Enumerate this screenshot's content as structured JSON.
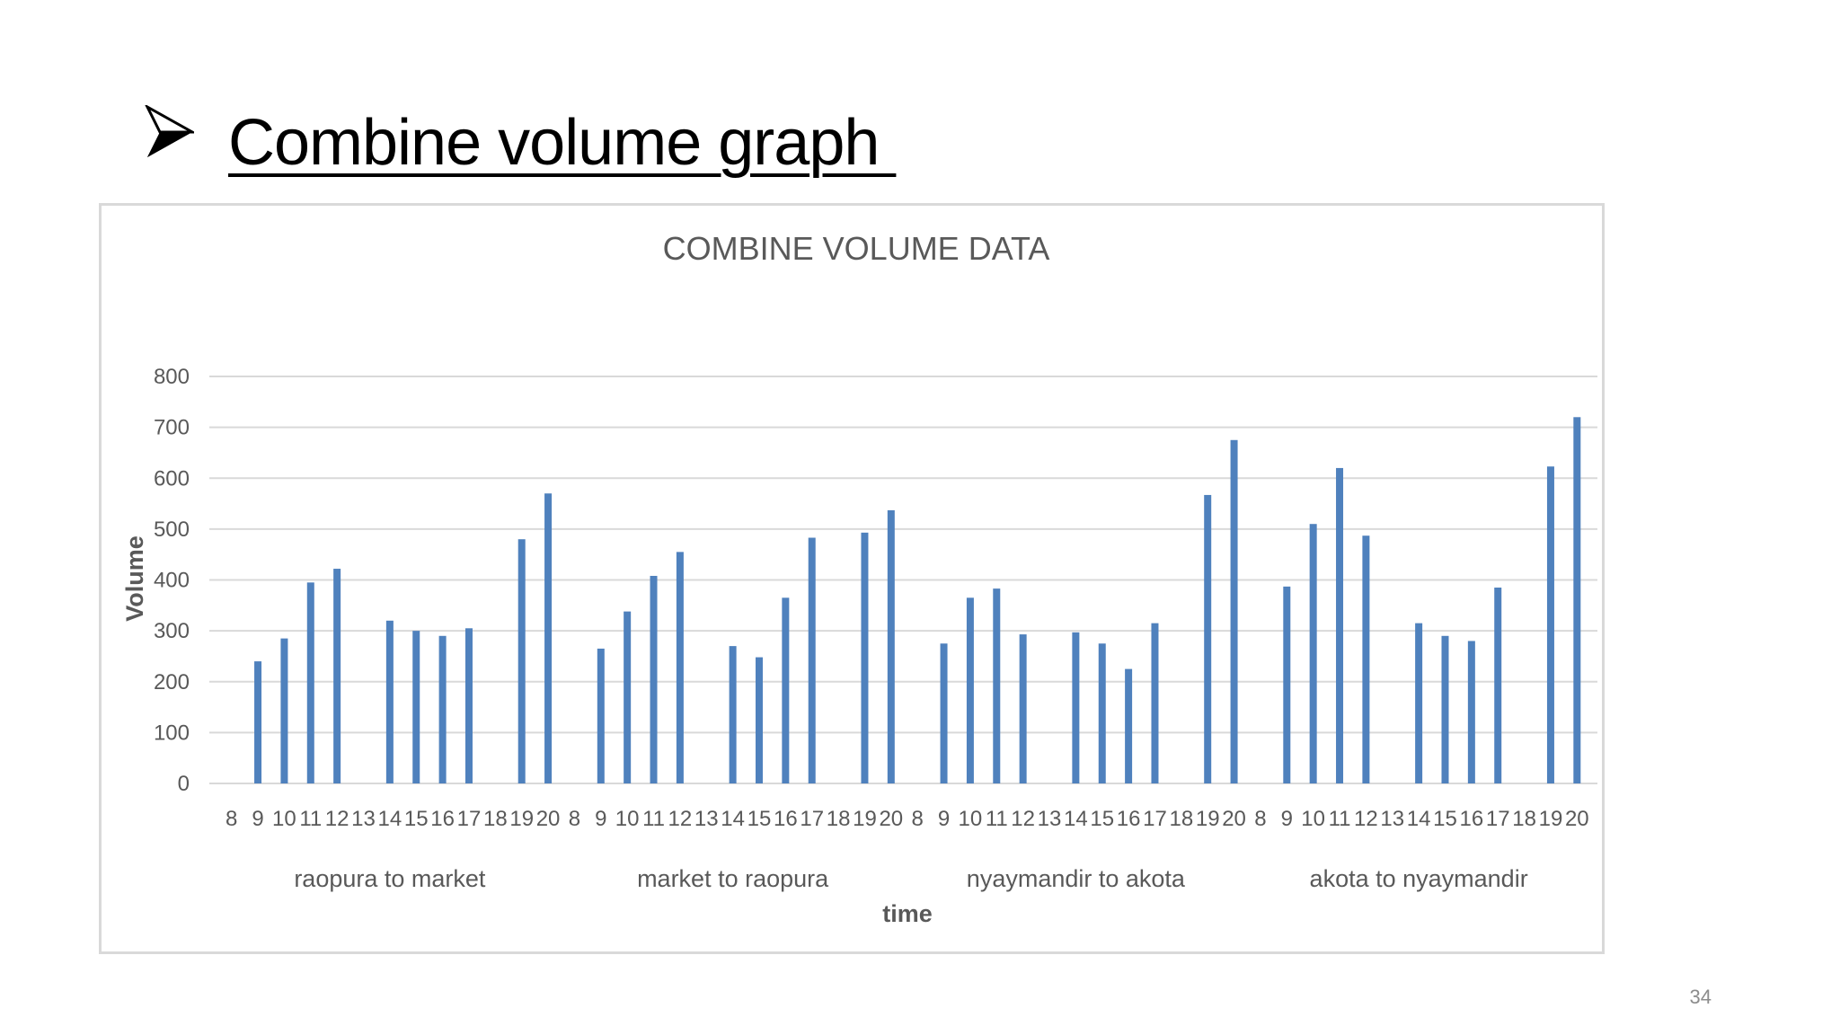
{
  "slide": {
    "title": "Combine volume graph ",
    "page_number": "34"
  },
  "colors": {
    "bar": "#4f81bd",
    "grid": "#d9d9d9",
    "text": "#595959"
  },
  "icons": {
    "bullet": "arrowhead-bullet-icon"
  },
  "chart_data": {
    "type": "bar",
    "title": "COMBINE VOLUME DATA",
    "xlabel": "time",
    "ylabel": "Volume",
    "ylim": [
      0,
      800
    ],
    "yticks": [
      0,
      100,
      200,
      300,
      400,
      500,
      600,
      700,
      800
    ],
    "grid": true,
    "legend": "none",
    "categories": [
      "8",
      "9",
      "10",
      "11",
      "12",
      "13",
      "14",
      "15",
      "16",
      "17",
      "18",
      "19",
      "20"
    ],
    "groups": [
      {
        "name": "raopura to market",
        "values": [
          null,
          240,
          285,
          395,
          422,
          null,
          320,
          300,
          290,
          305,
          null,
          480,
          570
        ]
      },
      {
        "name": "market to raopura",
        "values": [
          null,
          265,
          338,
          408,
          455,
          null,
          270,
          248,
          365,
          483,
          null,
          493,
          537
        ]
      },
      {
        "name": "nyaymandir to akota",
        "values": [
          null,
          275,
          365,
          383,
          293,
          null,
          297,
          275,
          225,
          315,
          null,
          567,
          675
        ]
      },
      {
        "name": "akota to nyaymandir",
        "values": [
          null,
          387,
          510,
          620,
          487,
          null,
          315,
          290,
          280,
          385,
          null,
          623,
          720
        ]
      }
    ]
  }
}
